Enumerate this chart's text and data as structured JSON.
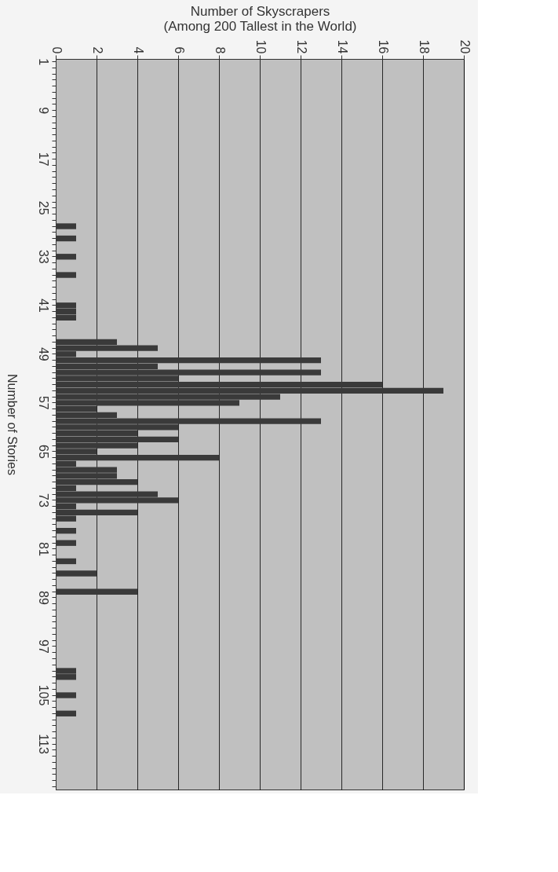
{
  "chart_data": {
    "type": "bar",
    "orientation": "horizontal",
    "xlabel": "Number of Skyscrapers\n(Among 200 Tallest in the World)",
    "ylabel": "Number of Stories",
    "categories": [
      "1",
      null,
      null,
      null,
      null,
      null,
      null,
      null,
      "9",
      null,
      null,
      null,
      null,
      null,
      null,
      null,
      "17",
      null,
      null,
      null,
      null,
      null,
      null,
      null,
      "25",
      null,
      null,
      null,
      null,
      null,
      null,
      null,
      "33",
      null,
      null,
      null,
      null,
      null,
      null,
      null,
      "41",
      null,
      null,
      null,
      null,
      null,
      null,
      null,
      "49",
      null,
      null,
      null,
      null,
      null,
      null,
      null,
      "57",
      null,
      null,
      null,
      null,
      null,
      null,
      null,
      "65",
      null,
      null,
      null,
      null,
      null,
      null,
      null,
      "73",
      null,
      null,
      null,
      null,
      null,
      null,
      null,
      "81",
      null,
      null,
      null,
      null,
      null,
      null,
      null,
      "89",
      null,
      null,
      null,
      null,
      null,
      null,
      null,
      "97",
      null,
      null,
      null,
      null,
      null,
      null,
      null,
      "105",
      null,
      null,
      null,
      null,
      null,
      null,
      null,
      "113",
      null,
      null,
      null,
      null,
      null,
      null,
      null
    ],
    "values": [
      0,
      0,
      0,
      0,
      0,
      0,
      0,
      0,
      0,
      0,
      0,
      0,
      0,
      0,
      0,
      0,
      0,
      0,
      0,
      0,
      0,
      0,
      0,
      0,
      0,
      0,
      0,
      1,
      0,
      1,
      0,
      0,
      1,
      0,
      0,
      1,
      0,
      0,
      0,
      0,
      1,
      1,
      1,
      0,
      0,
      0,
      3,
      5,
      1,
      13,
      5,
      13,
      6,
      16,
      19,
      11,
      9,
      2,
      3,
      13,
      6,
      4,
      6,
      4,
      2,
      8,
      1,
      3,
      3,
      4,
      1,
      5,
      6,
      1,
      4,
      1,
      0,
      1,
      0,
      1,
      0,
      0,
      1,
      0,
      2,
      0,
      0,
      4,
      0,
      0,
      0,
      0,
      0,
      0,
      0,
      0,
      0,
      0,
      0,
      0,
      1,
      1,
      0,
      0,
      1,
      0,
      0,
      1,
      0,
      0,
      0,
      0,
      0,
      0,
      0,
      0,
      0,
      0,
      0,
      0
    ],
    "color": "#3a3a3a",
    "xlim": [
      0,
      20
    ],
    "xticks": [
      0,
      2,
      4,
      6,
      8,
      10,
      12,
      14,
      16,
      18,
      20
    ],
    "grid": "x"
  }
}
